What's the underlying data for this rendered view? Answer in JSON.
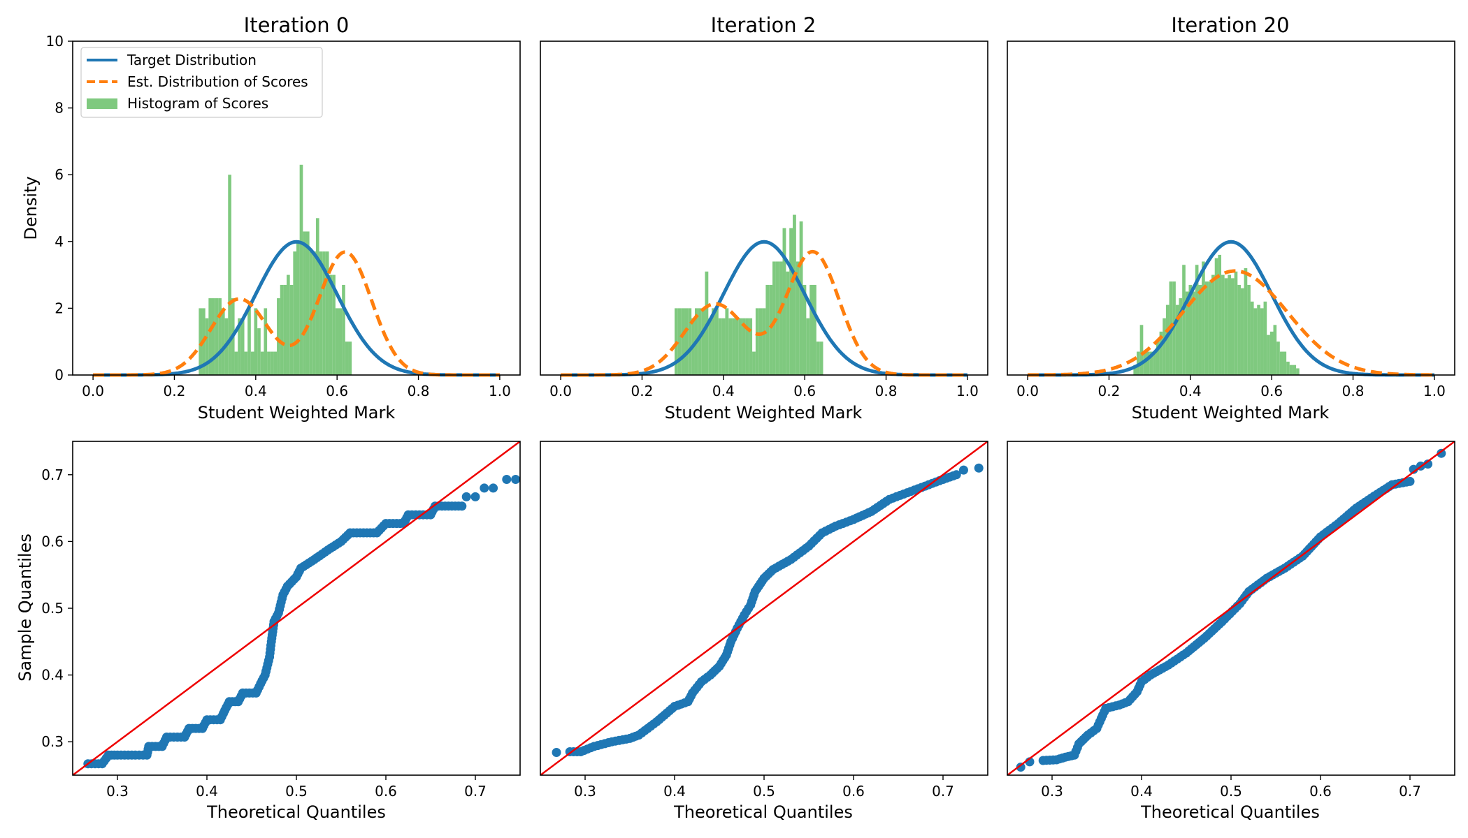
{
  "figure": {
    "panel_titles": [
      "Iteration 0",
      "Iteration 2",
      "Iteration 20"
    ]
  },
  "colors": {
    "target": "#1f77b4",
    "estimate": "#ff7f0e",
    "histogram": "#7fc97f",
    "qq_points": "#1f77b4",
    "qq_line": "#ee0000"
  },
  "chart_data": [
    {
      "type": "histogram+line",
      "panel": "top",
      "title": "Iteration 0",
      "xlabel": "Student Weighted Mark",
      "ylabel": "Density",
      "xlim": [
        -0.05,
        1.05
      ],
      "ylim": [
        0,
        10
      ],
      "xticks": [
        0.0,
        0.2,
        0.4,
        0.6,
        0.8,
        1.0
      ],
      "yticks": [
        0,
        2,
        4,
        6,
        8,
        10
      ],
      "legend": {
        "placement": "top-left",
        "entries": [
          "Target Distribution",
          "Est. Distribution of Scores",
          "Histogram of Scores"
        ]
      },
      "target": {
        "mean": 0.5,
        "sd": 0.1
      },
      "estimate": {
        "components": [
          {
            "w": 0.4,
            "mean": 0.36,
            "sd": 0.07
          },
          {
            "w": 0.6,
            "mean": 0.62,
            "sd": 0.065
          }
        ]
      },
      "histogram": {
        "start": 0.26,
        "bin_width": 0.008,
        "values": [
          2.0,
          2.0,
          1.7,
          2.3,
          2.3,
          2.3,
          2.3,
          2.0,
          1.7,
          6.0,
          2.3,
          0.7,
          1.7,
          1.7,
          0.7,
          2.0,
          0.7,
          2.0,
          1.4,
          0.7,
          2.0,
          0.7,
          0.7,
          0.7,
          2.3,
          2.7,
          2.7,
          3.0,
          2.7,
          3.7,
          4.0,
          6.3,
          4.3,
          4.3,
          3.7,
          3.7,
          4.7,
          3.7,
          3.7,
          3.7,
          3.0,
          3.0,
          2.0,
          2.0,
          2.7,
          1.0,
          1.0
        ]
      }
    },
    {
      "type": "histogram+line",
      "panel": "top",
      "title": "Iteration 2",
      "xlabel": "Student Weighted Mark",
      "xlim": [
        -0.05,
        1.05
      ],
      "ylim": [
        0,
        10
      ],
      "xticks": [
        0.0,
        0.2,
        0.4,
        0.6,
        0.8,
        1.0
      ],
      "target": {
        "mean": 0.5,
        "sd": 0.1
      },
      "estimate": {
        "components": [
          {
            "w": 0.4,
            "mean": 0.38,
            "sd": 0.075
          },
          {
            "w": 0.6,
            "mean": 0.62,
            "sd": 0.065
          }
        ]
      },
      "histogram": {
        "start": 0.28,
        "bin_width": 0.0083,
        "values": [
          2.0,
          2.0,
          2.0,
          2.0,
          2.0,
          1.7,
          2.0,
          2.0,
          2.0,
          3.1,
          1.7,
          2.0,
          2.0,
          1.7,
          1.7,
          2.0,
          1.7,
          1.7,
          1.7,
          1.7,
          1.7,
          1.7,
          1.7,
          0.7,
          2.0,
          2.0,
          2.0,
          2.7,
          2.7,
          3.4,
          3.4,
          3.4,
          4.4,
          3.1,
          4.4,
          4.8,
          3.4,
          4.6,
          2.7,
          1.7,
          2.7,
          2.7,
          1.0,
          1.0
        ]
      }
    },
    {
      "type": "histogram+line",
      "panel": "top",
      "title": "Iteration 20",
      "xlabel": "Student Weighted Mark",
      "xlim": [
        -0.05,
        1.05
      ],
      "ylim": [
        0,
        10
      ],
      "xticks": [
        0.0,
        0.2,
        0.4,
        0.6,
        0.8,
        1.0
      ],
      "target": {
        "mean": 0.5,
        "sd": 0.1
      },
      "estimate": {
        "components": [
          {
            "w": 1.0,
            "mean": 0.51,
            "sd": 0.128
          }
        ]
      },
      "histogram": {
        "start": 0.26,
        "bin_width": 0.008,
        "values": [
          0.3,
          0.7,
          1.5,
          0.7,
          0.7,
          0.7,
          0.7,
          1.0,
          1.3,
          1.7,
          2.1,
          2.8,
          2.8,
          2.1,
          2.3,
          3.3,
          2.5,
          2.7,
          2.5,
          3.3,
          2.7,
          3.4,
          2.8,
          2.8,
          3.0,
          3.5,
          3.6,
          3.0,
          2.9,
          3.0,
          2.9,
          3.1,
          2.7,
          2.6,
          3.2,
          2.7,
          2.2,
          2.0,
          2.1,
          2.0,
          2.2,
          1.2,
          1.3,
          1.5,
          1.0,
          0.7,
          0.7,
          0.4,
          0.3,
          0.3,
          0.2
        ]
      }
    },
    {
      "type": "scatter",
      "panel": "bottom",
      "subtype": "qq-plot",
      "xlabel": "Theoretical Quantiles",
      "ylabel": "Sample Quantiles",
      "xlim": [
        0.25,
        0.75
      ],
      "ylim": [
        0.25,
        0.75
      ],
      "xticks": [
        0.3,
        0.4,
        0.5,
        0.6,
        0.7
      ],
      "yticks": [
        0.3,
        0.4,
        0.5,
        0.6,
        0.7
      ],
      "reference_line": [
        [
          0.25,
          0.25
        ],
        [
          0.75,
          0.75
        ]
      ],
      "curve": [
        [
          0.267,
          0.267
        ],
        [
          0.283,
          0.267
        ],
        [
          0.29,
          0.28
        ],
        [
          0.3,
          0.28
        ],
        [
          0.32,
          0.28
        ],
        [
          0.333,
          0.28
        ],
        [
          0.335,
          0.293
        ],
        [
          0.35,
          0.293
        ],
        [
          0.355,
          0.307
        ],
        [
          0.375,
          0.307
        ],
        [
          0.38,
          0.32
        ],
        [
          0.395,
          0.32
        ],
        [
          0.4,
          0.333
        ],
        [
          0.415,
          0.333
        ],
        [
          0.42,
          0.347
        ],
        [
          0.425,
          0.36
        ],
        [
          0.435,
          0.36
        ],
        [
          0.44,
          0.373
        ],
        [
          0.455,
          0.373
        ],
        [
          0.46,
          0.387
        ],
        [
          0.465,
          0.4
        ],
        [
          0.47,
          0.427
        ],
        [
          0.472,
          0.45
        ],
        [
          0.475,
          0.48
        ],
        [
          0.48,
          0.493
        ],
        [
          0.485,
          0.52
        ],
        [
          0.49,
          0.533
        ],
        [
          0.5,
          0.547
        ],
        [
          0.505,
          0.56
        ],
        [
          0.52,
          0.573
        ],
        [
          0.535,
          0.587
        ],
        [
          0.55,
          0.6
        ],
        [
          0.56,
          0.613
        ],
        [
          0.59,
          0.613
        ],
        [
          0.6,
          0.627
        ],
        [
          0.62,
          0.627
        ],
        [
          0.625,
          0.64
        ],
        [
          0.65,
          0.64
        ],
        [
          0.655,
          0.653
        ],
        [
          0.685,
          0.653
        ]
      ],
      "outliers": [
        [
          0.69,
          0.667
        ],
        [
          0.7,
          0.667
        ],
        [
          0.71,
          0.68
        ],
        [
          0.72,
          0.68
        ],
        [
          0.735,
          0.693
        ],
        [
          0.745,
          0.693
        ]
      ]
    },
    {
      "type": "scatter",
      "panel": "bottom",
      "subtype": "qq-plot",
      "xlabel": "Theoretical Quantiles",
      "xlim": [
        0.25,
        0.75
      ],
      "ylim": [
        0.25,
        0.75
      ],
      "xticks": [
        0.3,
        0.4,
        0.5,
        0.6,
        0.7
      ],
      "reference_line": [
        [
          0.25,
          0.25
        ],
        [
          0.75,
          0.75
        ]
      ],
      "curve": [
        [
          0.283,
          0.285
        ],
        [
          0.295,
          0.285
        ],
        [
          0.31,
          0.293
        ],
        [
          0.33,
          0.3
        ],
        [
          0.35,
          0.305
        ],
        [
          0.36,
          0.31
        ],
        [
          0.38,
          0.33
        ],
        [
          0.4,
          0.353
        ],
        [
          0.415,
          0.36
        ],
        [
          0.42,
          0.373
        ],
        [
          0.43,
          0.39
        ],
        [
          0.44,
          0.4
        ],
        [
          0.45,
          0.413
        ],
        [
          0.458,
          0.43
        ],
        [
          0.463,
          0.45
        ],
        [
          0.47,
          0.47
        ],
        [
          0.478,
          0.49
        ],
        [
          0.485,
          0.505
        ],
        [
          0.49,
          0.525
        ],
        [
          0.5,
          0.545
        ],
        [
          0.51,
          0.558
        ],
        [
          0.53,
          0.573
        ],
        [
          0.55,
          0.593
        ],
        [
          0.565,
          0.613
        ],
        [
          0.58,
          0.623
        ],
        [
          0.6,
          0.633
        ],
        [
          0.62,
          0.645
        ],
        [
          0.64,
          0.663
        ],
        [
          0.66,
          0.673
        ],
        [
          0.68,
          0.683
        ],
        [
          0.7,
          0.693
        ],
        [
          0.715,
          0.7
        ]
      ],
      "outliers": [
        [
          0.268,
          0.284
        ],
        [
          0.723,
          0.707
        ],
        [
          0.74,
          0.71
        ]
      ]
    },
    {
      "type": "scatter",
      "panel": "bottom",
      "subtype": "qq-plot",
      "xlabel": "Theoretical Quantiles",
      "xlim": [
        0.25,
        0.75
      ],
      "ylim": [
        0.25,
        0.75
      ],
      "xticks": [
        0.3,
        0.4,
        0.5,
        0.6,
        0.7
      ],
      "reference_line": [
        [
          0.25,
          0.25
        ],
        [
          0.75,
          0.75
        ]
      ],
      "curve": [
        [
          0.29,
          0.272
        ],
        [
          0.305,
          0.273
        ],
        [
          0.315,
          0.277
        ],
        [
          0.325,
          0.28
        ],
        [
          0.33,
          0.297
        ],
        [
          0.34,
          0.31
        ],
        [
          0.35,
          0.32
        ],
        [
          0.36,
          0.35
        ],
        [
          0.375,
          0.355
        ],
        [
          0.385,
          0.36
        ],
        [
          0.395,
          0.375
        ],
        [
          0.4,
          0.39
        ],
        [
          0.41,
          0.4
        ],
        [
          0.43,
          0.415
        ],
        [
          0.45,
          0.433
        ],
        [
          0.47,
          0.455
        ],
        [
          0.49,
          0.48
        ],
        [
          0.51,
          0.507
        ],
        [
          0.52,
          0.525
        ],
        [
          0.54,
          0.545
        ],
        [
          0.56,
          0.56
        ],
        [
          0.58,
          0.578
        ],
        [
          0.6,
          0.607
        ],
        [
          0.62,
          0.627
        ],
        [
          0.64,
          0.65
        ],
        [
          0.66,
          0.668
        ],
        [
          0.68,
          0.685
        ],
        [
          0.7,
          0.69
        ]
      ],
      "outliers": [
        [
          0.265,
          0.262
        ],
        [
          0.275,
          0.27
        ],
        [
          0.704,
          0.708
        ],
        [
          0.712,
          0.713
        ],
        [
          0.72,
          0.716
        ],
        [
          0.735,
          0.732
        ]
      ]
    }
  ]
}
